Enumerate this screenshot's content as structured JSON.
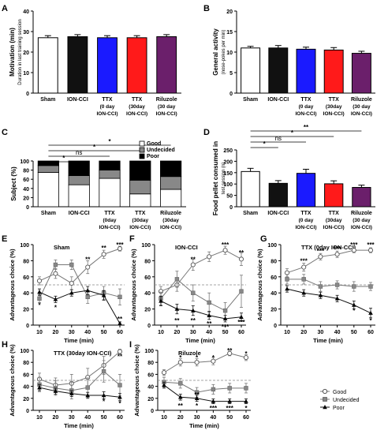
{
  "chart_data": [
    {
      "panel": "A",
      "type": "bar",
      "ylabel": "Motivation (min)",
      "ylabel2": "Duration in last training session",
      "ylim": [
        0,
        40
      ],
      "yticks": [
        0,
        10,
        20,
        30,
        40
      ],
      "categories": [
        [
          "Sham"
        ],
        [
          "ION-CCI"
        ],
        [
          "TTX",
          "(0 day",
          "ION-CCI)"
        ],
        [
          "TTX",
          "(30day",
          "ION-CCI)"
        ],
        [
          "Riluzole",
          "(30 day",
          "ION-CCI)"
        ]
      ],
      "values": [
        27,
        27.5,
        27,
        27,
        27.5
      ],
      "errors": [
        1,
        1,
        1,
        1,
        1
      ],
      "colors": [
        "#ffffff",
        "#111111",
        "#1a1aff",
        "#ff1a1a",
        "#6b1f6b"
      ]
    },
    {
      "panel": "B",
      "type": "bar",
      "ylabel": "General activity",
      "ylabel2": "(nose-pokes per min)",
      "ylim": [
        0,
        20
      ],
      "yticks": [
        0,
        5,
        10,
        15,
        20
      ],
      "categories": [
        [
          "Sham"
        ],
        [
          "ION-CCI"
        ],
        [
          "TTX",
          "(0 day",
          "ION-CCI)"
        ],
        [
          "TTX",
          "(30day",
          "ION-CCI)"
        ],
        [
          "Riluzole",
          "(30 day",
          "ION-CCI)"
        ]
      ],
      "values": [
        11,
        11,
        10.7,
        10.5,
        9.7
      ],
      "errors": [
        0.4,
        0.6,
        0.5,
        0.6,
        0.5
      ],
      "colors": [
        "#ffffff",
        "#111111",
        "#1a1aff",
        "#ff1a1a",
        "#6b1f6b"
      ]
    },
    {
      "panel": "C",
      "type": "bar",
      "stacked": true,
      "ylabel": "Subject (%)",
      "ylim": [
        0,
        100
      ],
      "yticks": [
        0,
        20,
        40,
        60,
        80,
        100
      ],
      "categories": [
        [
          "Sham"
        ],
        [
          "ION-CCI"
        ],
        [
          "TTX",
          "(0day",
          "ION-CCI)"
        ],
        [
          "TTX",
          "(30day",
          "ION-CCI)"
        ],
        [
          "Riluzole",
          "(30day",
          "ION-CCI)"
        ]
      ],
      "series": [
        {
          "name": "Good",
          "color": "#ffffff",
          "values": [
            75,
            48,
            62,
            28,
            38
          ]
        },
        {
          "name": "Undecided",
          "color": "#888888",
          "values": [
            15,
            20,
            18,
            30,
            28
          ]
        },
        {
          "name": "Poor",
          "color": "#000000",
          "values": [
            10,
            32,
            20,
            42,
            34
          ]
        }
      ],
      "significance": [
        {
          "label": "*",
          "from": 0,
          "to": 4
        },
        {
          "label": "*",
          "from": 0,
          "to": 3
        },
        {
          "label": "ns",
          "from": 0,
          "to": 2
        },
        {
          "label": "*",
          "from": 0,
          "to": 1
        }
      ]
    },
    {
      "panel": "D",
      "type": "bar",
      "ylabel": "Food pellet consumed in",
      "ylabel2": "test session (n)",
      "ylim": [
        0,
        250
      ],
      "yticks": [
        0,
        50,
        100,
        150,
        200,
        250
      ],
      "categories": [
        [
          "Sham"
        ],
        [
          "ION-CCI"
        ],
        [
          "TTX",
          "(0 day",
          "ION-CCI)"
        ],
        [
          "TTX",
          "(30day",
          "ION-CCI)"
        ],
        [
          "Riluzole",
          "(30 day",
          "ION-CCI)"
        ]
      ],
      "values": [
        155,
        103,
        147,
        101,
        85
      ],
      "errors": [
        14,
        12,
        18,
        13,
        10
      ],
      "colors": [
        "#ffffff",
        "#111111",
        "#1a1aff",
        "#ff1a1a",
        "#6b1f6b"
      ],
      "significance": [
        {
          "label": "**",
          "from": 0,
          "to": 4
        },
        {
          "label": "*",
          "from": 0,
          "to": 3
        },
        {
          "label": "ns",
          "from": 0,
          "to": 2
        },
        {
          "label": "*",
          "from": 0,
          "to": 1
        }
      ]
    },
    {
      "panel": "E",
      "type": "line",
      "title": "Sham",
      "xlabel": "Time (min)",
      "ylabel": "Advantageous choice (%)",
      "x": [
        10,
        20,
        30,
        40,
        50,
        60
      ],
      "ylim": [
        0,
        100
      ],
      "yticks": [
        0,
        20,
        40,
        60,
        80,
        100
      ],
      "chance": 50,
      "series": [
        {
          "name": "Good",
          "values": [
            55,
            64,
            52,
            72,
            88,
            95
          ],
          "errors": [
            5,
            6,
            8,
            8,
            5,
            3
          ]
        },
        {
          "name": "Undecided",
          "values": [
            33,
            75,
            75,
            35,
            40,
            35
          ],
          "errors": [
            5,
            6,
            6,
            8,
            8,
            10
          ]
        },
        {
          "name": "Poor",
          "values": [
            41,
            32,
            40,
            43,
            37,
            2
          ],
          "errors": [
            4,
            4,
            4,
            5,
            6,
            2
          ]
        }
      ],
      "annotations": [
        {
          "x": 10,
          "y": 25,
          "label": "*"
        },
        {
          "x": 20,
          "y": 22,
          "label": "*"
        },
        {
          "x": 40,
          "y": 82,
          "label": "**"
        },
        {
          "x": 50,
          "y": 96,
          "label": "**"
        },
        {
          "x": 60,
          "y": 100,
          "label": "***"
        },
        {
          "x": 60,
          "y": 8,
          "label": "**"
        }
      ]
    },
    {
      "panel": "F",
      "type": "line",
      "title": "ION-CCI",
      "xlabel": "Time (min)",
      "ylabel": "Advantageous choice (%)",
      "x": [
        10,
        20,
        30,
        40,
        50,
        60
      ],
      "ylim": [
        0,
        100
      ],
      "yticks": [
        0,
        20,
        40,
        60,
        80,
        100
      ],
      "chance": 50,
      "series": [
        {
          "name": "Good",
          "values": [
            42,
            50,
            75,
            85,
            93,
            82
          ],
          "errors": [
            6,
            8,
            7,
            6,
            5,
            8
          ]
        },
        {
          "name": "Undecided",
          "values": [
            33,
            57,
            40,
            28,
            18,
            42
          ],
          "errors": [
            8,
            10,
            10,
            12,
            10,
            20
          ]
        },
        {
          "name": "Poor",
          "values": [
            30,
            20,
            18,
            12,
            8,
            10
          ],
          "errors": [
            6,
            6,
            6,
            5,
            4,
            5
          ]
        }
      ],
      "annotations": [
        {
          "x": 30,
          "y": 82,
          "label": "**"
        },
        {
          "x": 50,
          "y": 100,
          "label": "***"
        },
        {
          "x": 60,
          "y": 90,
          "label": "**"
        },
        {
          "x": 20,
          "y": 6,
          "label": "**"
        },
        {
          "x": 30,
          "y": 6,
          "label": "**"
        },
        {
          "x": 40,
          "y": 2,
          "label": "**"
        },
        {
          "x": 50,
          "y": -2,
          "label": "***"
        },
        {
          "x": 60,
          "y": 4,
          "label": "***"
        }
      ]
    },
    {
      "panel": "G",
      "type": "line",
      "title": "TTX  (0day ION-CCI)",
      "xlabel": "Time (min)",
      "ylabel": "Advantageous choice (%)",
      "x": [
        10,
        20,
        30,
        40,
        50,
        60
      ],
      "ylim": [
        0,
        100
      ],
      "yticks": [
        0,
        20,
        40,
        60,
        80,
        100
      ],
      "chance": 50,
      "series": [
        {
          "name": "Good",
          "values": [
            65,
            72,
            85,
            88,
            93,
            93
          ],
          "errors": [
            5,
            5,
            4,
            4,
            3,
            3
          ]
        },
        {
          "name": "Undecided",
          "values": [
            57,
            57,
            48,
            50,
            48,
            48
          ],
          "errors": [
            6,
            6,
            6,
            5,
            6,
            5
          ]
        },
        {
          "name": "Poor",
          "values": [
            45,
            40,
            37,
            33,
            25,
            15
          ],
          "errors": [
            4,
            4,
            4,
            4,
            5,
            6
          ]
        }
      ],
      "annotations": [
        {
          "x": 20,
          "y": 80,
          "label": "***"
        },
        {
          "x": 30,
          "y": 92,
          "label": "***"
        },
        {
          "x": 40,
          "y": 95,
          "label": "***"
        },
        {
          "x": 50,
          "y": 100,
          "label": "***"
        },
        {
          "x": 60,
          "y": 100,
          "label": "***"
        },
        {
          "x": 50,
          "y": 18,
          "label": "*"
        },
        {
          "x": 60,
          "y": 6,
          "label": "*"
        }
      ]
    },
    {
      "panel": "H",
      "type": "line",
      "title": "TTX  (30day ION-CCI)",
      "xlabel": "Time (min)",
      "ylabel": "Advantageous choice (%)",
      "x": [
        10,
        20,
        30,
        40,
        50,
        60
      ],
      "ylim": [
        0,
        100
      ],
      "yticks": [
        0,
        20,
        40,
        60,
        80,
        100
      ],
      "chance": 50,
      "series": [
        {
          "name": "Good",
          "values": [
            52,
            42,
            45,
            55,
            75,
            98
          ],
          "errors": [
            10,
            12,
            15,
            15,
            15,
            4
          ]
        },
        {
          "name": "Undecided",
          "values": [
            43,
            37,
            33,
            38,
            65,
            42
          ],
          "errors": [
            12,
            12,
            14,
            16,
            18,
            18
          ]
        },
        {
          "name": "Poor",
          "values": [
            38,
            32,
            28,
            25,
            25,
            22
          ],
          "errors": [
            5,
            5,
            5,
            5,
            6,
            6
          ]
        }
      ],
      "annotations": [
        {
          "x": 60,
          "y": 90,
          "label": "**"
        },
        {
          "x": 50,
          "y": 15,
          "label": "*"
        },
        {
          "x": 60,
          "y": 12,
          "label": "*"
        }
      ]
    },
    {
      "panel": "I",
      "type": "line",
      "title": "Riluzole",
      "xlabel": "Time (min)",
      "ylabel": "Advantageous choice (%)",
      "x": [
        10,
        20,
        30,
        40,
        50,
        60
      ],
      "ylim": [
        0,
        100
      ],
      "yticks": [
        0,
        20,
        40,
        60,
        80,
        100
      ],
      "chance": 50,
      "series": [
        {
          "name": "Good",
          "values": [
            63,
            80,
            80,
            82,
            95,
            88
          ],
          "errors": [
            5,
            6,
            6,
            6,
            4,
            5
          ]
        },
        {
          "name": "Undecided",
          "values": [
            47,
            45,
            30,
            35,
            37,
            37
          ],
          "errors": [
            8,
            8,
            8,
            8,
            8,
            8
          ]
        },
        {
          "name": "Poor",
          "values": [
            42,
            22,
            20,
            15,
            15,
            15
          ],
          "errors": [
            5,
            5,
            5,
            4,
            4,
            4
          ]
        }
      ],
      "annotations": [
        {
          "x": 20,
          "y": 88,
          "label": "*"
        },
        {
          "x": 30,
          "y": 88,
          "label": "*"
        },
        {
          "x": 40,
          "y": 88,
          "label": "*"
        },
        {
          "x": 50,
          "y": 100,
          "label": "**"
        },
        {
          "x": 60,
          "y": 95,
          "label": "*"
        },
        {
          "x": 30,
          "y": 26,
          "label": "**"
        },
        {
          "x": 20,
          "y": 8,
          "label": "**"
        },
        {
          "x": 30,
          "y": 8,
          "label": "*"
        },
        {
          "x": 40,
          "y": 4,
          "label": "***"
        },
        {
          "x": 50,
          "y": 4,
          "label": "***"
        },
        {
          "x": 60,
          "y": 4,
          "label": "*"
        }
      ],
      "legend": [
        "Good",
        "Undecided",
        "Poor"
      ]
    }
  ]
}
